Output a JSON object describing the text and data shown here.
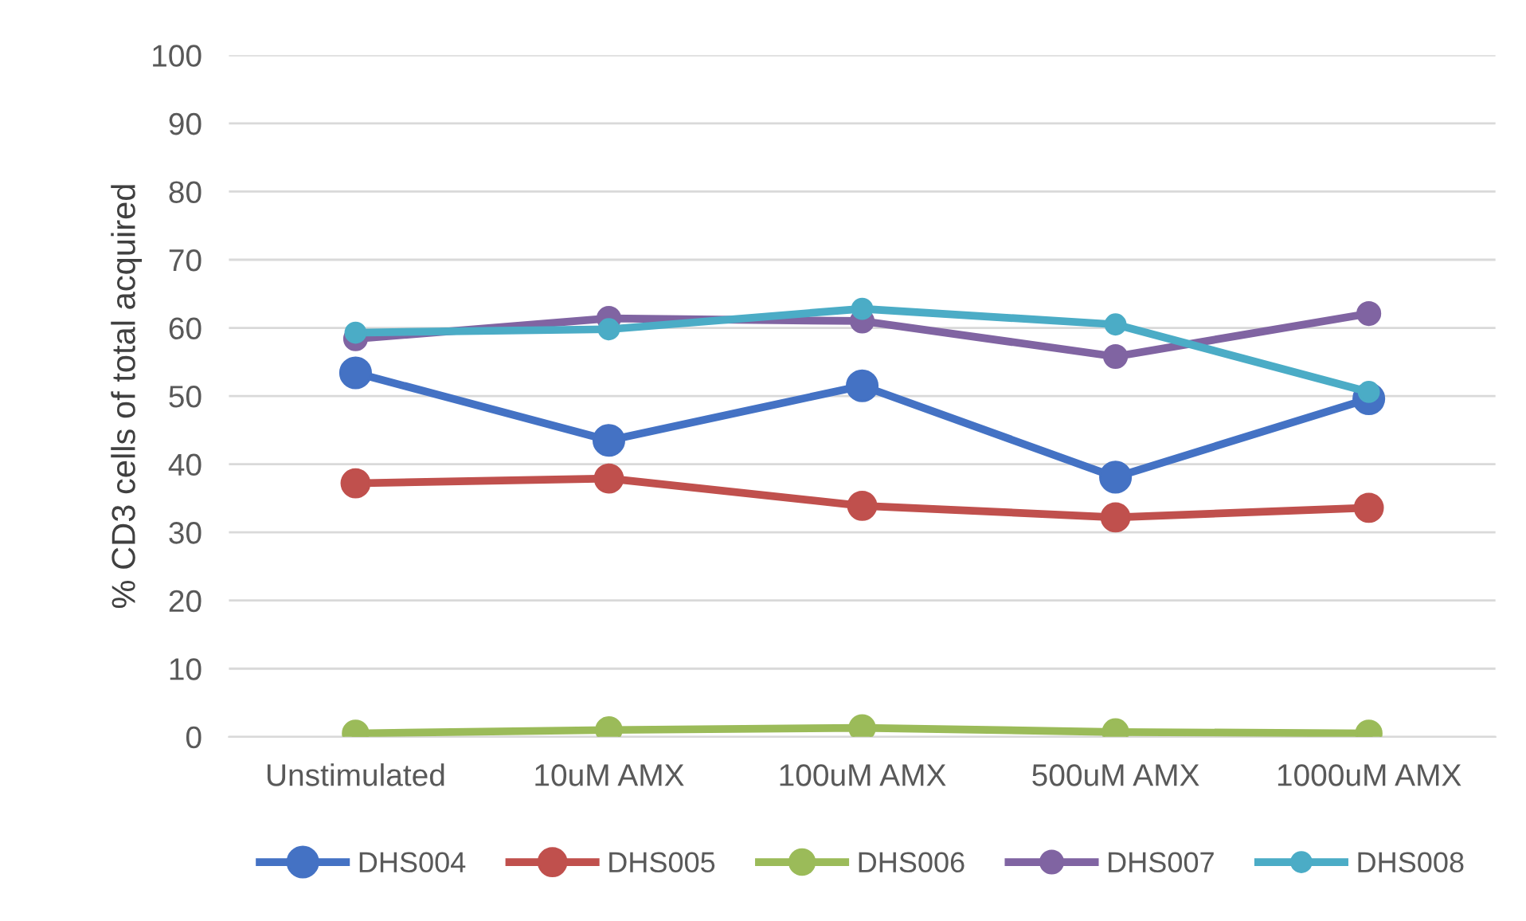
{
  "chart_data": {
    "type": "line",
    "ylabel": "% CD3 cells of total acquired",
    "categories": [
      "Unstimulated",
      "10uM AMX",
      "100uM AMX",
      "500uM AMX",
      "1000uM AMX"
    ],
    "series": [
      {
        "name": "DHS004",
        "color": "#4472c4",
        "values": [
          53.4,
          43.5,
          51.5,
          38.1,
          49.6
        ]
      },
      {
        "name": "DHS005",
        "color": "#c0504d",
        "values": [
          37.2,
          37.9,
          33.9,
          32.2,
          33.6
        ]
      },
      {
        "name": "DHS006",
        "color": "#9bbb59",
        "values": [
          0.5,
          1.0,
          1.3,
          0.7,
          0.5
        ]
      },
      {
        "name": "DHS007",
        "color": "#8064a2",
        "values": [
          58.4,
          61.4,
          61.0,
          55.8,
          62.1
        ]
      },
      {
        "name": "DHS008",
        "color": "#4bacc6",
        "values": [
          59.3,
          59.8,
          62.8,
          60.5,
          50.6
        ]
      }
    ],
    "ylim": [
      0,
      100
    ],
    "yticks": [
      0,
      10,
      20,
      30,
      40,
      50,
      60,
      70,
      80,
      90,
      100
    ],
    "grid": "y",
    "legend": "bottom",
    "marker": "circle",
    "line_style": "solid"
  }
}
